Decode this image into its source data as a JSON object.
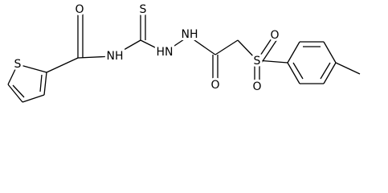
{
  "atoms": [
    {
      "label": "O"
    },
    {
      "label": "S"
    },
    {
      "label": "NH"
    },
    {
      "label": "S"
    },
    {
      "label": "HN"
    },
    {
      "label": "NH"
    },
    {
      "label": "O"
    },
    {
      "label": "S"
    },
    {
      "label": "O"
    },
    {
      "label": "O"
    }
  ]
}
